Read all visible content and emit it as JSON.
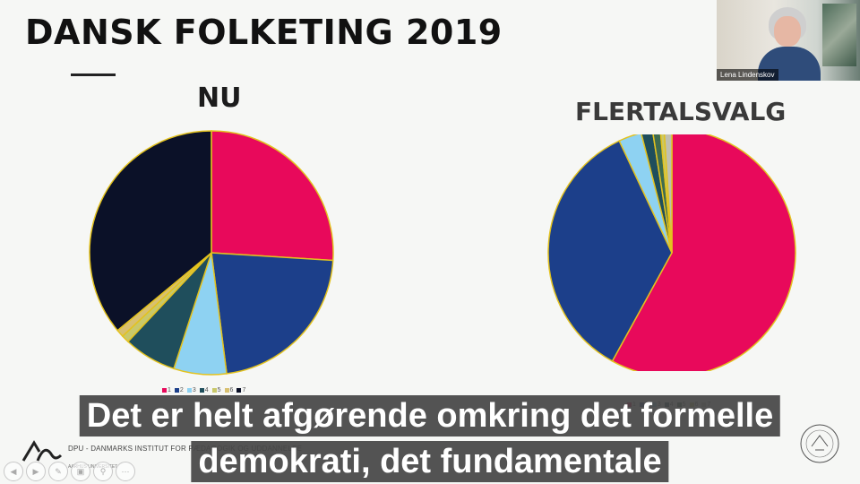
{
  "slide": {
    "title": "DANSK FOLKETING 2019",
    "footer_text": "DPU - DANMARKS INSTITUT FOR PÆDAGOGIK OG UDDANNELSE",
    "footer_sub": "AARHUS UNIVERSITET"
  },
  "video": {
    "participant_name": "Lena Lindenskov"
  },
  "captions": {
    "line1": "Det er helt afgørende omkring det formelle",
    "line2": "demokrati, det fundamentale"
  },
  "chart_data": [
    {
      "type": "pie",
      "title": "NU",
      "categories": [
        "1",
        "2",
        "3",
        "4",
        "5",
        "6",
        "7"
      ],
      "values": [
        26,
        22,
        7,
        7,
        1,
        1,
        36
      ],
      "colors": [
        "#e8095b",
        "#1c3f8a",
        "#8ed2f2",
        "#1f4e5c",
        "#c9c86a",
        "#d8c070",
        "#0b1128"
      ]
    },
    {
      "type": "pie",
      "title": "FLERTALSVALG",
      "categories": [
        "1",
        "2",
        "3",
        "4",
        "5",
        "6",
        "7"
      ],
      "values": [
        58,
        35,
        3,
        1.5,
        1,
        0.5,
        1
      ],
      "colors": [
        "#e8095b",
        "#1c3f8a",
        "#8ed2f2",
        "#1f4e5c",
        "#3e6b50",
        "#c9c86a",
        "#c0c0b0"
      ]
    }
  ],
  "icons": {
    "nav": [
      "prev-icon",
      "next-icon",
      "pen-icon",
      "view-icon",
      "zoom-icon",
      "more-icon"
    ]
  }
}
